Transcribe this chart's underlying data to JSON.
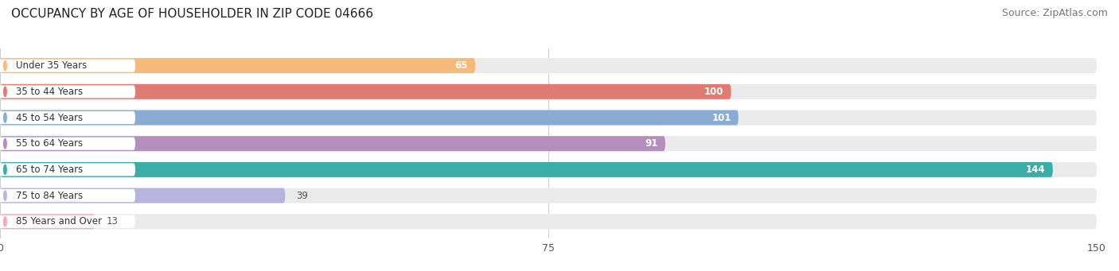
{
  "title": "OCCUPANCY BY AGE OF HOUSEHOLDER IN ZIP CODE 04666",
  "source": "Source: ZipAtlas.com",
  "categories": [
    "Under 35 Years",
    "35 to 44 Years",
    "45 to 54 Years",
    "55 to 64 Years",
    "65 to 74 Years",
    "75 to 84 Years",
    "85 Years and Over"
  ],
  "values": [
    65,
    100,
    101,
    91,
    144,
    39,
    13
  ],
  "bar_colors": [
    "#f5b97a",
    "#e07b72",
    "#8aacd4",
    "#b48fbe",
    "#3aada8",
    "#b8b4e0",
    "#f5a8be"
  ],
  "bar_bg_color": "#ebebeb",
  "xlim": [
    0,
    150
  ],
  "xticks": [
    0,
    75,
    150
  ],
  "title_fontsize": 11,
  "source_fontsize": 9,
  "label_fontsize": 8.5,
  "value_fontsize": 8.5,
  "bar_height": 0.58,
  "background_color": "#ffffff",
  "label_pill_color": "#ffffff",
  "label_text_color": "#333333",
  "value_inside_color": "#ffffff",
  "value_outside_color": "#555555"
}
